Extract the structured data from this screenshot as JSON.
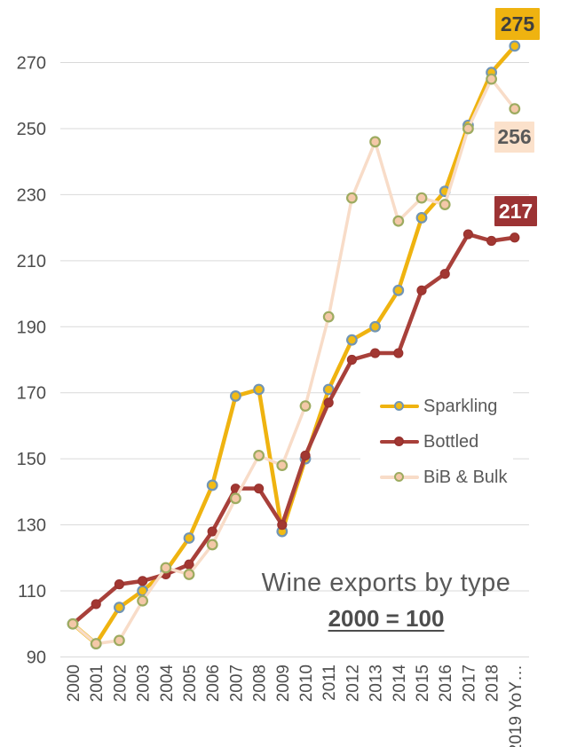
{
  "header": {
    "title": "Wine exports by type",
    "subtitle": "2000 = 100"
  },
  "colors": {
    "background": "#FFFFFF",
    "grid": "#D9D9D9",
    "axis_text": "#4D4D4D",
    "title_text": "#595959"
  },
  "chart_data": {
    "type": "line",
    "title": "Wine exports by type",
    "subtitle": "2000 = 100",
    "x": [
      "2000",
      "2001",
      "2002",
      "2003",
      "2004",
      "2005",
      "2006",
      "2007",
      "2008",
      "2009",
      "2010",
      "2011",
      "2012",
      "2013",
      "2014",
      "2015",
      "2016",
      "2017",
      "2018",
      "2019 YoY…"
    ],
    "ylim": [
      90,
      270
    ],
    "y_ticks": [
      90,
      110,
      130,
      150,
      170,
      190,
      210,
      230,
      250,
      270
    ],
    "grid": true,
    "legend_position": "center-right",
    "series": [
      {
        "name": "Sparkling",
        "color": "#EFB310",
        "marker_fill": "#F2BB14",
        "marker_ring": "#7195B5",
        "line_width": 4.5,
        "marker_radius": 5.3,
        "marker_stroke": 2.2,
        "values": [
          100,
          94,
          105,
          110,
          116,
          126,
          142,
          169,
          171,
          128,
          150,
          171,
          186,
          190,
          201,
          223,
          231,
          251,
          267,
          275
        ]
      },
      {
        "name": "Bottled",
        "color": "#A8403A",
        "marker_fill": "#A23732",
        "marker_ring": "#98322E",
        "line_width": 4.5,
        "marker_radius": 5,
        "marker_stroke": 1.2,
        "values": [
          100,
          106,
          112,
          113,
          115,
          118,
          128,
          141,
          141,
          130,
          151,
          167,
          180,
          182,
          182,
          201,
          206,
          218,
          216,
          217
        ]
      },
      {
        "name": "BiB & Bulk",
        "color": "#F8DCC8",
        "marker_fill": "#F4C8A8",
        "marker_ring": "#9DAB60",
        "line_width": 3.5,
        "marker_radius": 5.3,
        "marker_stroke": 2.2,
        "values": [
          100,
          94,
          95,
          107,
          117,
          115,
          124,
          138,
          151,
          148,
          166,
          193,
          229,
          246,
          222,
          229,
          227,
          250,
          265,
          256
        ]
      }
    ],
    "end_labels": [
      {
        "series": "Sparkling",
        "value": "275",
        "bg": "#EFB310",
        "fg": "#3F3F3F"
      },
      {
        "series": "BiB & Bulk",
        "value": "256",
        "bg": "#FBE1CB",
        "fg": "#595959"
      },
      {
        "series": "Bottled",
        "value": "217",
        "bg": "#9C3334",
        "fg": "#FFFFFF"
      }
    ]
  }
}
